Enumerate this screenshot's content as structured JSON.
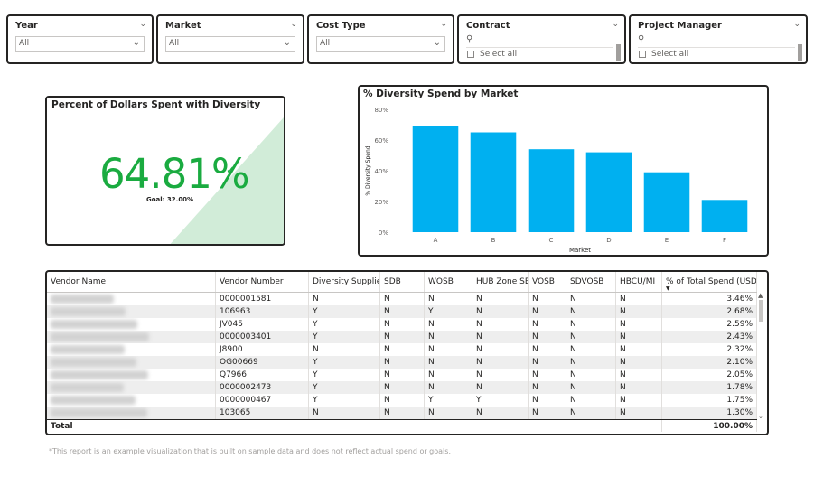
{
  "slicers": [
    {
      "title": "Year",
      "value": "All",
      "kind": "dropdown"
    },
    {
      "title": "Market",
      "value": "All",
      "kind": "dropdown"
    },
    {
      "title": "Cost Type",
      "value": "All",
      "kind": "dropdown"
    },
    {
      "title": "Contract",
      "option": "Select all",
      "kind": "list"
    },
    {
      "title": "Project Manager",
      "option": "Select all",
      "kind": "list"
    }
  ],
  "kpi": {
    "title": "Percent of Dollars Spent with Diversity",
    "value": "64.81%",
    "goal": "Goal: 32.00%",
    "status_color": "#1aab40"
  },
  "chart_data": {
    "type": "bar",
    "title": "% Diversity Spend by Market",
    "xlabel": "Market",
    "ylabel": "% Diversity Spend",
    "categories": [
      "A",
      "B",
      "C",
      "D",
      "E",
      "F"
    ],
    "values": [
      69,
      65,
      54,
      52,
      39,
      21
    ],
    "ylim": [
      0,
      80
    ],
    "yticks": [
      "0%",
      "20%",
      "40%",
      "60%",
      "80%"
    ],
    "color": "#00b0f0",
    "grid": false
  },
  "table": {
    "columns": [
      "Vendor Name",
      "Vendor Number",
      "Diversity Supplier",
      "SDB",
      "WOSB",
      "HUB Zone SB",
      "VOSB",
      "SDVOSB",
      "HBCU/MI",
      "% of Total Spend (USD)"
    ],
    "rows": [
      [
        "",
        "0000001581",
        "N",
        "N",
        "N",
        "N",
        "N",
        "N",
        "N",
        "3.46%"
      ],
      [
        "",
        "106963",
        "Y",
        "N",
        "Y",
        "N",
        "N",
        "N",
        "N",
        "2.68%"
      ],
      [
        "",
        "JV045",
        "Y",
        "N",
        "N",
        "N",
        "N",
        "N",
        "N",
        "2.59%"
      ],
      [
        "",
        "0000003401",
        "Y",
        "N",
        "N",
        "N",
        "N",
        "N",
        "N",
        "2.43%"
      ],
      [
        "",
        "J8900",
        "N",
        "N",
        "N",
        "N",
        "N",
        "N",
        "N",
        "2.32%"
      ],
      [
        "",
        "OG00669",
        "Y",
        "N",
        "N",
        "N",
        "N",
        "N",
        "N",
        "2.10%"
      ],
      [
        "",
        "Q7966",
        "Y",
        "N",
        "N",
        "N",
        "N",
        "N",
        "N",
        "2.05%"
      ],
      [
        "",
        "0000002473",
        "Y",
        "N",
        "N",
        "N",
        "N",
        "N",
        "N",
        "1.78%"
      ],
      [
        "",
        "0000000467",
        "Y",
        "N",
        "Y",
        "Y",
        "N",
        "N",
        "N",
        "1.75%"
      ],
      [
        "",
        "103065",
        "N",
        "N",
        "N",
        "N",
        "N",
        "N",
        "N",
        "1.30%"
      ]
    ],
    "total_label": "Total",
    "total_value": "100.00%"
  },
  "footnote": "*This report is an example visualization that is built on sample data and does not reflect actual spend or goals.",
  "icons": {
    "chevron": "chevron-down-icon",
    "search": "search-icon",
    "sort": "sort-desc-icon"
  }
}
